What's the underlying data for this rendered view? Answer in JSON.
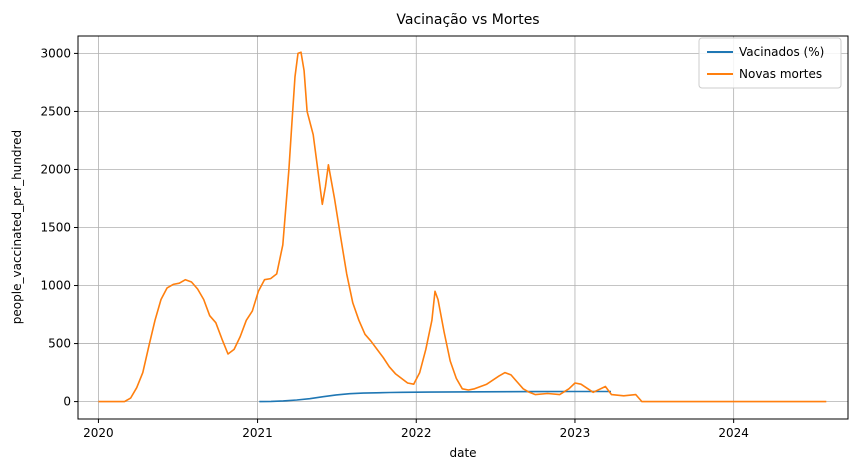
{
  "chart_data": {
    "type": "line",
    "title": "Vacinação vs Mortes",
    "xlabel": "date",
    "ylabel": "people_vaccinated_per_hundred",
    "xlim": [
      "2019-11-15",
      "2024-09-20"
    ],
    "ylim": [
      -150,
      3150
    ],
    "grid": true,
    "legend_position": "top-right",
    "x_ticks": [
      "2020",
      "2021",
      "2022",
      "2023",
      "2024"
    ],
    "y_ticks": [
      0,
      500,
      1000,
      1500,
      2000,
      2500,
      3000
    ],
    "series": [
      {
        "name": "Vacinados (%)",
        "color": "#1f77b4",
        "points": [
          [
            "2021-01-05",
            0
          ],
          [
            "2021-02-01",
            2
          ],
          [
            "2021-03-01",
            6
          ],
          [
            "2021-04-01",
            14
          ],
          [
            "2021-05-01",
            25
          ],
          [
            "2021-06-01",
            42
          ],
          [
            "2021-07-01",
            58
          ],
          [
            "2021-08-01",
            68
          ],
          [
            "2021-09-01",
            73
          ],
          [
            "2021-10-01",
            76
          ],
          [
            "2021-11-01",
            78
          ],
          [
            "2021-12-01",
            80
          ],
          [
            "2022-02-01",
            82
          ],
          [
            "2022-06-01",
            84
          ],
          [
            "2022-10-01",
            86
          ],
          [
            "2023-01-01",
            87
          ],
          [
            "2023-03-25",
            87
          ]
        ]
      },
      {
        "name": "Novas mortes",
        "color": "#ff7f0e",
        "points": [
          [
            "2020-01-01",
            0
          ],
          [
            "2020-03-01",
            0
          ],
          [
            "2020-03-15",
            30
          ],
          [
            "2020-03-29",
            120
          ],
          [
            "2020-04-12",
            250
          ],
          [
            "2020-04-26",
            480
          ],
          [
            "2020-05-10",
            700
          ],
          [
            "2020-05-24",
            880
          ],
          [
            "2020-06-07",
            980
          ],
          [
            "2020-06-21",
            1010
          ],
          [
            "2020-07-05",
            1020
          ],
          [
            "2020-07-19",
            1050
          ],
          [
            "2020-08-02",
            1030
          ],
          [
            "2020-08-16",
            970
          ],
          [
            "2020-08-30",
            880
          ],
          [
            "2020-09-13",
            740
          ],
          [
            "2020-09-27",
            680
          ],
          [
            "2020-10-11",
            540
          ],
          [
            "2020-10-25",
            410
          ],
          [
            "2020-11-08",
            450
          ],
          [
            "2020-11-22",
            560
          ],
          [
            "2020-12-06",
            700
          ],
          [
            "2020-12-20",
            780
          ],
          [
            "2021-01-03",
            950
          ],
          [
            "2021-01-17",
            1050
          ],
          [
            "2021-01-31",
            1060
          ],
          [
            "2021-02-14",
            1100
          ],
          [
            "2021-02-28",
            1350
          ],
          [
            "2021-03-14",
            2000
          ],
          [
            "2021-03-21",
            2400
          ],
          [
            "2021-03-28",
            2800
          ],
          [
            "2021-04-04",
            3000
          ],
          [
            "2021-04-11",
            3010
          ],
          [
            "2021-04-18",
            2850
          ],
          [
            "2021-04-25",
            2500
          ],
          [
            "2021-05-09",
            2300
          ],
          [
            "2021-05-23",
            1900
          ],
          [
            "2021-05-30",
            1700
          ],
          [
            "2021-06-06",
            1850
          ],
          [
            "2021-06-13",
            2040
          ],
          [
            "2021-06-27",
            1750
          ],
          [
            "2021-07-11",
            1420
          ],
          [
            "2021-07-25",
            1100
          ],
          [
            "2021-08-08",
            850
          ],
          [
            "2021-08-22",
            700
          ],
          [
            "2021-09-05",
            580
          ],
          [
            "2021-09-19",
            520
          ],
          [
            "2021-10-03",
            450
          ],
          [
            "2021-10-17",
            380
          ],
          [
            "2021-10-31",
            300
          ],
          [
            "2021-11-14",
            240
          ],
          [
            "2021-11-28",
            200
          ],
          [
            "2021-12-12",
            160
          ],
          [
            "2021-12-26",
            150
          ],
          [
            "2022-01-09",
            250
          ],
          [
            "2022-01-23",
            450
          ],
          [
            "2022-02-06",
            700
          ],
          [
            "2022-02-13",
            950
          ],
          [
            "2022-02-20",
            880
          ],
          [
            "2022-03-06",
            600
          ],
          [
            "2022-03-20",
            350
          ],
          [
            "2022-04-03",
            200
          ],
          [
            "2022-04-17",
            110
          ],
          [
            "2022-05-01",
            100
          ],
          [
            "2022-05-15",
            110
          ],
          [
            "2022-06-12",
            150
          ],
          [
            "2022-07-10",
            220
          ],
          [
            "2022-07-24",
            250
          ],
          [
            "2022-08-07",
            230
          ],
          [
            "2022-08-21",
            170
          ],
          [
            "2022-09-04",
            110
          ],
          [
            "2022-09-18",
            80
          ],
          [
            "2022-10-02",
            60
          ],
          [
            "2022-10-30",
            70
          ],
          [
            "2022-11-27",
            60
          ],
          [
            "2022-12-18",
            110
          ],
          [
            "2023-01-01",
            160
          ],
          [
            "2023-01-15",
            150
          ],
          [
            "2023-02-12",
            80
          ],
          [
            "2023-03-12",
            130
          ],
          [
            "2023-03-26",
            60
          ],
          [
            "2023-04-23",
            50
          ],
          [
            "2023-05-21",
            60
          ],
          [
            "2023-06-04",
            0
          ],
          [
            "2024-08-01",
            0
          ]
        ]
      }
    ]
  }
}
